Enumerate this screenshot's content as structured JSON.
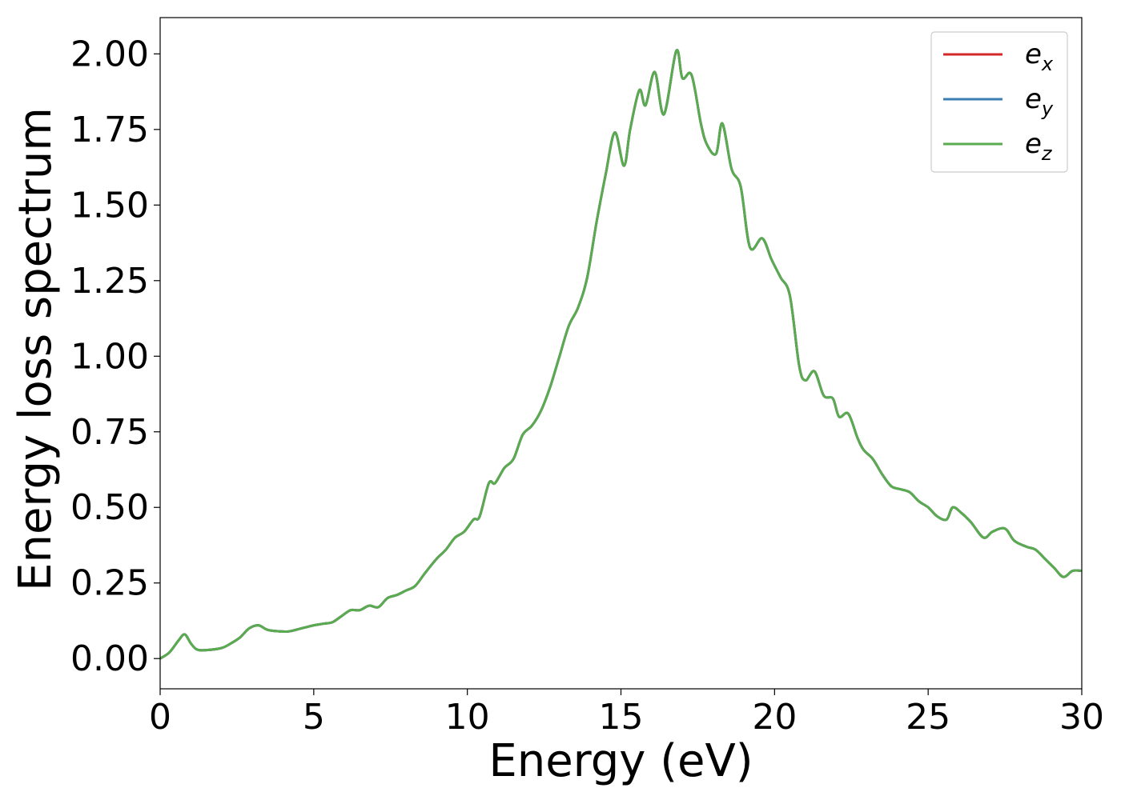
{
  "chart_data": {
    "type": "line",
    "title": "",
    "xlabel": "Energy (eV)",
    "ylabel": "Energy loss spectrum",
    "xlim": [
      0,
      30
    ],
    "ylim": [
      -0.1,
      2.12
    ],
    "grid": false,
    "legend_position": "top-right",
    "xticks": [
      0,
      5,
      10,
      15,
      20,
      25,
      30
    ],
    "xtick_labels": [
      "0",
      "5",
      "10",
      "15",
      "20",
      "25",
      "30"
    ],
    "yticks": [
      0.0,
      0.25,
      0.5,
      0.75,
      1.0,
      1.25,
      1.5,
      1.75,
      2.0
    ],
    "ytick_labels": [
      "0.00",
      "0.25",
      "0.50",
      "0.75",
      "1.00",
      "1.25",
      "1.50",
      "1.75",
      "2.00"
    ],
    "x": [
      0,
      0.3,
      0.6,
      0.8,
      1.0,
      1.2,
      1.5,
      2.0,
      2.3,
      2.6,
      2.9,
      3.2,
      3.5,
      3.9,
      4.2,
      4.6,
      5.0,
      5.3,
      5.6,
      5.9,
      6.2,
      6.5,
      6.8,
      7.1,
      7.4,
      7.7,
      8.0,
      8.3,
      8.6,
      9.0,
      9.3,
      9.6,
      9.9,
      10.2,
      10.4,
      10.7,
      10.9,
      11.2,
      11.5,
      11.8,
      12.1,
      12.4,
      12.7,
      13.0,
      13.3,
      13.6,
      13.9,
      14.2,
      14.5,
      14.8,
      15.1,
      15.3,
      15.6,
      15.8,
      16.1,
      16.4,
      16.8,
      17.0,
      17.3,
      17.6,
      17.8,
      18.1,
      18.3,
      18.6,
      18.9,
      19.2,
      19.6,
      19.9,
      20.2,
      20.5,
      20.8,
      21.0,
      21.3,
      21.6,
      21.9,
      22.1,
      22.4,
      22.7,
      22.9,
      23.2,
      23.5,
      23.8,
      24.1,
      24.4,
      24.7,
      25.0,
      25.3,
      25.6,
      25.8,
      26.1,
      26.4,
      26.8,
      27.1,
      27.5,
      27.8,
      28.2,
      28.5,
      28.8,
      29.1,
      29.4,
      29.7,
      30.0
    ],
    "y": [
      0.0,
      0.02,
      0.06,
      0.08,
      0.05,
      0.03,
      0.028,
      0.035,
      0.05,
      0.07,
      0.1,
      0.11,
      0.095,
      0.09,
      0.09,
      0.1,
      0.11,
      0.115,
      0.12,
      0.14,
      0.16,
      0.16,
      0.175,
      0.17,
      0.2,
      0.21,
      0.225,
      0.24,
      0.28,
      0.33,
      0.36,
      0.4,
      0.42,
      0.46,
      0.47,
      0.58,
      0.58,
      0.63,
      0.66,
      0.74,
      0.77,
      0.82,
      0.9,
      1.0,
      1.1,
      1.16,
      1.26,
      1.44,
      1.6,
      1.74,
      1.63,
      1.75,
      1.88,
      1.83,
      1.94,
      1.8,
      2.01,
      1.92,
      1.93,
      1.77,
      1.7,
      1.67,
      1.77,
      1.62,
      1.56,
      1.36,
      1.39,
      1.32,
      1.26,
      1.2,
      0.97,
      0.92,
      0.95,
      0.87,
      0.86,
      0.8,
      0.81,
      0.73,
      0.69,
      0.66,
      0.61,
      0.57,
      0.56,
      0.55,
      0.52,
      0.5,
      0.47,
      0.46,
      0.5,
      0.48,
      0.45,
      0.4,
      0.42,
      0.43,
      0.39,
      0.37,
      0.36,
      0.33,
      0.3,
      0.27,
      0.29,
      0.29
    ],
    "series": [
      {
        "name": "e_x",
        "label_base": "e",
        "label_sub": "x",
        "color": "#d62728"
      },
      {
        "name": "e_y",
        "label_base": "e",
        "label_sub": "y",
        "color": "#3a7eb4"
      },
      {
        "name": "e_z",
        "label_base": "e",
        "label_sub": "z",
        "color": "#5aaa50"
      }
    ]
  }
}
